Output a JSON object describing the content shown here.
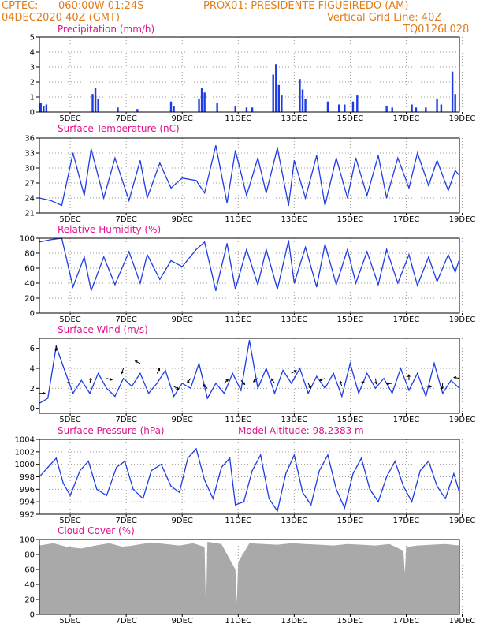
{
  "header": {
    "line1_left": "CPTEC:",
    "line1_coords": "060:00W-01:24S",
    "line1_station": "PROX01: PRESIDENTE FIGUEIREDO (AM)",
    "line2_left": "04DEC2020 40Z (GMT)",
    "line2_right": "Vertical Grid Line: 40Z",
    "line3_right": "TQ0126L028"
  },
  "colors": {
    "header_text": "#e07d1a",
    "panel_title": "#e0148c",
    "line": "#1e3ce6",
    "bar": "#1e3ce6",
    "cloud": "#a9a9a9",
    "grid": "#9a9a9a",
    "axis": "#000000"
  },
  "day_labels": [
    "5DEC",
    "7DEC",
    "9DEC",
    "11DEC",
    "13DEC",
    "15DEC",
    "17DEC",
    "19DEC"
  ],
  "panels": {
    "precip": {
      "title": "Precipitation (mm/h)"
    },
    "temp": {
      "title": "Surface Temperature (nC)"
    },
    "rh": {
      "title": "Relative Humidity (%)"
    },
    "wind": {
      "title": "Surface Wind (m/s)"
    },
    "pres": {
      "title": "Surface Pressure (hPa)",
      "extra": "Model Altitude: 98.2383 m"
    },
    "cloud": {
      "title": "Cloud Cover (%)"
    }
  },
  "chart_data": [
    {
      "type": "bar",
      "name": "precip",
      "x_unit": "days since 04DEC2020 00Z",
      "xlim": [
        4.0,
        19.0
      ],
      "ylim": [
        0,
        5
      ],
      "yticks": [
        0,
        1,
        2,
        3,
        4,
        5
      ],
      "x": [
        4.05,
        4.15,
        4.25,
        5.9,
        6.0,
        6.1,
        6.8,
        7.5,
        8.7,
        8.8,
        9.7,
        9.8,
        9.9,
        10.35,
        11.0,
        11.4,
        11.6,
        12.35,
        12.45,
        12.55,
        12.65,
        13.3,
        13.4,
        13.5,
        14.3,
        14.7,
        14.9,
        15.2,
        15.35,
        16.4,
        16.6,
        17.3,
        17.45,
        17.8,
        18.2,
        18.35,
        18.75,
        18.85
      ],
      "values": [
        0.6,
        0.4,
        0.5,
        1.2,
        1.6,
        0.9,
        0.3,
        0.2,
        0.7,
        0.4,
        0.9,
        1.6,
        1.3,
        0.6,
        0.4,
        0.3,
        0.3,
        2.5,
        3.2,
        1.8,
        1.1,
        2.2,
        1.5,
        0.9,
        0.7,
        0.5,
        0.5,
        0.7,
        1.1,
        0.4,
        0.3,
        0.5,
        0.3,
        0.3,
        0.9,
        0.5,
        2.7,
        1.2
      ]
    },
    {
      "type": "line",
      "name": "temp",
      "x_unit": "days since 04DEC2020 00Z",
      "xlim": [
        4.0,
        19.0
      ],
      "ylim": [
        21,
        36
      ],
      "yticks": [
        21,
        24,
        27,
        30,
        33,
        36
      ],
      "x": [
        4.0,
        4.4,
        4.8,
        5.2,
        5.6,
        5.85,
        6.3,
        6.7,
        7.2,
        7.6,
        7.85,
        8.3,
        8.7,
        9.1,
        9.6,
        9.9,
        10.3,
        10.7,
        11.0,
        11.4,
        11.8,
        12.1,
        12.5,
        12.9,
        13.1,
        13.5,
        13.9,
        14.2,
        14.6,
        15.0,
        15.3,
        15.7,
        16.1,
        16.4,
        16.8,
        17.2,
        17.5,
        17.9,
        18.2,
        18.6,
        18.85,
        19.0
      ],
      "values": [
        24.0,
        23.5,
        22.5,
        33.0,
        24.5,
        33.8,
        24.0,
        32.0,
        23.5,
        31.5,
        24.0,
        31.0,
        26.0,
        28.0,
        27.5,
        25.0,
        34.5,
        23.0,
        33.5,
        24.5,
        32.0,
        25.0,
        34.0,
        22.5,
        31.5,
        24.0,
        32.5,
        22.5,
        32.0,
        24.0,
        32.0,
        24.5,
        32.5,
        24.0,
        32.0,
        26.0,
        33.0,
        26.5,
        31.5,
        25.5,
        29.5,
        28.5
      ]
    },
    {
      "type": "line",
      "name": "rh",
      "x_unit": "days since 04DEC2020 00Z",
      "xlim": [
        4.0,
        19.0
      ],
      "ylim": [
        0,
        100
      ],
      "yticks": [
        0,
        20,
        40,
        60,
        80,
        100
      ],
      "x": [
        4.0,
        4.4,
        4.8,
        5.2,
        5.6,
        5.85,
        6.3,
        6.7,
        7.2,
        7.6,
        7.85,
        8.3,
        8.7,
        9.1,
        9.6,
        9.9,
        10.3,
        10.7,
        11.0,
        11.4,
        11.8,
        12.1,
        12.5,
        12.9,
        13.1,
        13.5,
        13.9,
        14.2,
        14.6,
        15.0,
        15.3,
        15.7,
        16.1,
        16.4,
        16.8,
        17.2,
        17.5,
        17.9,
        18.2,
        18.6,
        18.85,
        19.0
      ],
      "values": [
        95.0,
        98.0,
        100.0,
        35.0,
        75.0,
        30.0,
        75.0,
        38.0,
        82.0,
        40.0,
        78.0,
        45.0,
        70.0,
        62.0,
        85.0,
        95.0,
        30.0,
        93.0,
        32.0,
        85.0,
        38.0,
        85.0,
        32.0,
        97.0,
        40.0,
        88.0,
        35.0,
        92.0,
        38.0,
        85.0,
        40.0,
        82.0,
        38.0,
        85.0,
        40.0,
        78.0,
        37.0,
        75.0,
        42.0,
        78.0,
        55.0,
        72.0
      ]
    },
    {
      "type": "line",
      "name": "wind",
      "x_unit": "days since 04DEC2020 00Z",
      "xlim": [
        4.0,
        19.0
      ],
      "ylim": [
        -0.5,
        7.0
      ],
      "yticks": [
        0,
        2,
        4,
        6
      ],
      "x": [
        4.0,
        4.3,
        4.6,
        4.9,
        5.2,
        5.5,
        5.8,
        6.1,
        6.4,
        6.7,
        7.0,
        7.3,
        7.6,
        7.9,
        8.2,
        8.5,
        8.8,
        9.1,
        9.4,
        9.7,
        10.0,
        10.3,
        10.6,
        10.9,
        11.2,
        11.5,
        11.8,
        12.1,
        12.4,
        12.7,
        13.0,
        13.3,
        13.6,
        13.9,
        14.2,
        14.5,
        14.8,
        15.1,
        15.4,
        15.7,
        16.0,
        16.3,
        16.6,
        16.9,
        17.2,
        17.5,
        17.8,
        18.1,
        18.4,
        18.7,
        19.0
      ],
      "values": [
        0.5,
        1.0,
        6.2,
        3.8,
        1.5,
        2.8,
        1.5,
        3.5,
        2.0,
        1.2,
        3.0,
        2.2,
        3.5,
        1.5,
        2.5,
        3.8,
        1.2,
        2.5,
        2.0,
        4.5,
        1.0,
        2.5,
        1.5,
        3.5,
        1.8,
        6.8,
        2.0,
        4.0,
        1.5,
        3.8,
        2.5,
        4.0,
        1.5,
        3.2,
        2.0,
        3.5,
        1.2,
        4.5,
        1.5,
        3.5,
        2.0,
        3.0,
        1.5,
        4.0,
        1.8,
        3.5,
        1.2,
        4.5,
        1.5,
        2.8,
        2.0
      ]
    },
    {
      "type": "line",
      "name": "pres",
      "x_unit": "days since 04DEC2020 00Z",
      "xlim": [
        4.0,
        19.0
      ],
      "ylim": [
        992,
        1004
      ],
      "yticks": [
        992,
        994,
        996,
        998,
        1000,
        1002,
        1004
      ],
      "x": [
        4.0,
        4.3,
        4.6,
        4.85,
        5.1,
        5.45,
        5.75,
        6.05,
        6.4,
        6.75,
        7.05,
        7.35,
        7.7,
        8.0,
        8.35,
        8.7,
        9.0,
        9.3,
        9.6,
        9.9,
        10.2,
        10.5,
        10.8,
        11.0,
        11.3,
        11.6,
        11.9,
        12.2,
        12.5,
        12.8,
        13.1,
        13.4,
        13.7,
        14.0,
        14.3,
        14.6,
        14.9,
        15.2,
        15.5,
        15.8,
        16.1,
        16.4,
        16.7,
        17.0,
        17.3,
        17.6,
        17.9,
        18.2,
        18.5,
        18.8,
        19.0
      ],
      "values": [
        998.0,
        999.5,
        1001.0,
        997.0,
        995.0,
        999.0,
        1000.5,
        996.0,
        995.0,
        999.5,
        1000.5,
        996.0,
        994.5,
        999.0,
        1000.0,
        996.5,
        995.5,
        1001.0,
        1002.5,
        997.5,
        994.5,
        999.5,
        1001.0,
        993.5,
        994.0,
        999.0,
        1001.5,
        994.5,
        992.5,
        998.5,
        1001.5,
        995.5,
        993.5,
        999.0,
        1001.5,
        996.0,
        993.0,
        998.5,
        1001.0,
        996.0,
        994.0,
        998.0,
        1000.5,
        996.5,
        994.0,
        999.0,
        1000.5,
        996.5,
        994.5,
        998.5,
        995.5
      ]
    },
    {
      "type": "area",
      "name": "cloud",
      "x_unit": "days since 04DEC2020 00Z",
      "xlim": [
        4.0,
        19.0
      ],
      "ylim": [
        0,
        100
      ],
      "yticks": [
        0,
        20,
        40,
        60,
        80,
        100
      ],
      "x": [
        4.0,
        4.5,
        5.0,
        5.5,
        6.0,
        6.5,
        7.0,
        7.5,
        8.0,
        8.5,
        9.0,
        9.5,
        9.9,
        9.95,
        10.0,
        10.5,
        11.0,
        11.05,
        11.1,
        11.5,
        12.0,
        12.5,
        13.0,
        13.5,
        14.0,
        14.5,
        15.0,
        15.5,
        16.0,
        16.5,
        17.0,
        17.05,
        17.1,
        17.5,
        18.0,
        18.5,
        19.0
      ],
      "values": [
        92,
        95,
        90,
        88,
        92,
        95,
        90,
        93,
        96,
        94,
        92,
        95,
        90,
        2,
        97,
        94,
        60,
        15,
        70,
        95,
        94,
        93,
        95,
        94,
        93,
        92,
        94,
        93,
        92,
        94,
        85,
        55,
        90,
        92,
        93,
        94,
        92
      ]
    }
  ]
}
